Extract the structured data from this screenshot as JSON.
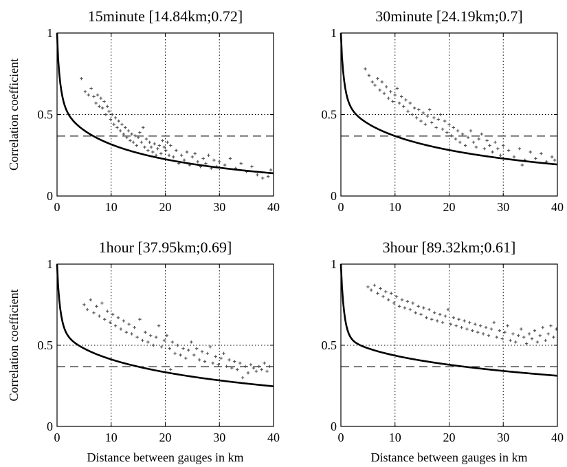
{
  "chart_data": [
    {
      "type": "scatter",
      "title": "15minute [14.84km;0.72]",
      "xlabel": "",
      "ylabel": "Correlation coefficient",
      "xlim": [
        0,
        40
      ],
      "ylim": [
        0,
        1
      ],
      "xticks": [
        "0",
        "10",
        "20",
        "30",
        "40"
      ],
      "yticks": [
        "0",
        "0.5",
        "1"
      ],
      "grid": "dotted",
      "fit": {
        "nugget": 0.72,
        "range_km": 14.84
      },
      "reference_line": 0.368,
      "points": [
        [
          4.5,
          0.72
        ],
        [
          5.2,
          0.64
        ],
        [
          5.8,
          0.62
        ],
        [
          6.3,
          0.66
        ],
        [
          6.8,
          0.61
        ],
        [
          7.2,
          0.57
        ],
        [
          7.5,
          0.62
        ],
        [
          7.8,
          0.55
        ],
        [
          8.1,
          0.6
        ],
        [
          8.4,
          0.54
        ],
        [
          8.7,
          0.58
        ],
        [
          9.0,
          0.5
        ],
        [
          9.3,
          0.55
        ],
        [
          9.6,
          0.52
        ],
        [
          9.9,
          0.47
        ],
        [
          10.2,
          0.5
        ],
        [
          10.5,
          0.44
        ],
        [
          10.8,
          0.48
        ],
        [
          11.1,
          0.42
        ],
        [
          11.4,
          0.46
        ],
        [
          11.7,
          0.4
        ],
        [
          12.0,
          0.44
        ],
        [
          12.3,
          0.38
        ],
        [
          12.6,
          0.42
        ],
        [
          12.9,
          0.36
        ],
        [
          13.2,
          0.4
        ],
        [
          13.5,
          0.34
        ],
        [
          13.8,
          0.38
        ],
        [
          14.1,
          0.33
        ],
        [
          14.4,
          0.37
        ],
        [
          14.7,
          0.31
        ],
        [
          15.0,
          0.36
        ],
        [
          15.3,
          0.39
        ],
        [
          15.6,
          0.33
        ],
        [
          15.9,
          0.42
        ],
        [
          16.2,
          0.3
        ],
        [
          16.5,
          0.35
        ],
        [
          16.8,
          0.28
        ],
        [
          17.1,
          0.33
        ],
        [
          17.4,
          0.3
        ],
        [
          17.7,
          0.27
        ],
        [
          18.0,
          0.32
        ],
        [
          18.3,
          0.25
        ],
        [
          18.6,
          0.29
        ],
        [
          18.9,
          0.31
        ],
        [
          19.2,
          0.26
        ],
        [
          19.5,
          0.34
        ],
        [
          19.8,
          0.3
        ],
        [
          20.1,
          0.28
        ],
        [
          20.4,
          0.33
        ],
        [
          20.7,
          0.25
        ],
        [
          21.0,
          0.31
        ],
        [
          21.5,
          0.24
        ],
        [
          22.0,
          0.28
        ],
        [
          22.5,
          0.2
        ],
        [
          23.0,
          0.25
        ],
        [
          23.5,
          0.22
        ],
        [
          24.0,
          0.27
        ],
        [
          24.5,
          0.19
        ],
        [
          25.0,
          0.24
        ],
        [
          25.5,
          0.26
        ],
        [
          26.0,
          0.21
        ],
        [
          26.5,
          0.18
        ],
        [
          27.0,
          0.23
        ],
        [
          27.5,
          0.2
        ],
        [
          28.0,
          0.25
        ],
        [
          28.5,
          0.17
        ],
        [
          29.0,
          0.22
        ],
        [
          29.5,
          0.18
        ],
        [
          30.0,
          0.21
        ],
        [
          31.0,
          0.19
        ],
        [
          32.0,
          0.23
        ],
        [
          33.0,
          0.17
        ],
        [
          34.0,
          0.2
        ],
        [
          35.0,
          0.15
        ],
        [
          36.0,
          0.18
        ],
        [
          37.0,
          0.13
        ],
        [
          38.0,
          0.11
        ],
        [
          39.0,
          0.12
        ],
        [
          39.5,
          0.16
        ]
      ]
    },
    {
      "type": "scatter",
      "title": "30minute  [24.19km;0.7]",
      "xlabel": "",
      "ylabel": "",
      "xlim": [
        0,
        40
      ],
      "ylim": [
        0,
        1
      ],
      "xticks": [
        "0",
        "10",
        "20",
        "30",
        "40"
      ],
      "yticks": [
        "0",
        "0.5",
        "1"
      ],
      "grid": "dotted",
      "fit": {
        "nugget": 0.7,
        "range_km": 24.19
      },
      "reference_line": 0.368,
      "points": [
        [
          4.5,
          0.78
        ],
        [
          5.2,
          0.74
        ],
        [
          5.8,
          0.7
        ],
        [
          6.3,
          0.68
        ],
        [
          6.8,
          0.72
        ],
        [
          7.2,
          0.65
        ],
        [
          7.6,
          0.7
        ],
        [
          8.0,
          0.63
        ],
        [
          8.4,
          0.67
        ],
        [
          8.8,
          0.6
        ],
        [
          9.2,
          0.64
        ],
        [
          9.6,
          0.58
        ],
        [
          10.0,
          0.62
        ],
        [
          10.4,
          0.66
        ],
        [
          10.8,
          0.57
        ],
        [
          11.2,
          0.61
        ],
        [
          11.6,
          0.55
        ],
        [
          12.0,
          0.59
        ],
        [
          12.4,
          0.52
        ],
        [
          12.8,
          0.57
        ],
        [
          13.2,
          0.5
        ],
        [
          13.6,
          0.54
        ],
        [
          14.0,
          0.48
        ],
        [
          14.4,
          0.53
        ],
        [
          14.8,
          0.46
        ],
        [
          15.2,
          0.51
        ],
        [
          15.6,
          0.44
        ],
        [
          16.0,
          0.49
        ],
        [
          16.4,
          0.53
        ],
        [
          16.8,
          0.45
        ],
        [
          17.2,
          0.48
        ],
        [
          17.6,
          0.42
        ],
        [
          18.0,
          0.47
        ],
        [
          18.4,
          0.5
        ],
        [
          18.8,
          0.41
        ],
        [
          19.2,
          0.46
        ],
        [
          19.6,
          0.39
        ],
        [
          20.0,
          0.44
        ],
        [
          20.4,
          0.37
        ],
        [
          20.8,
          0.42
        ],
        [
          21.2,
          0.35
        ],
        [
          21.6,
          0.4
        ],
        [
          22.0,
          0.33
        ],
        [
          22.5,
          0.38
        ],
        [
          23.0,
          0.31
        ],
        [
          23.5,
          0.36
        ],
        [
          24.0,
          0.4
        ],
        [
          24.5,
          0.33
        ],
        [
          25.0,
          0.3
        ],
        [
          25.5,
          0.35
        ],
        [
          26.0,
          0.38
        ],
        [
          26.5,
          0.29
        ],
        [
          27.0,
          0.34
        ],
        [
          27.5,
          0.31
        ],
        [
          28.0,
          0.27
        ],
        [
          28.5,
          0.33
        ],
        [
          29.0,
          0.29
        ],
        [
          29.5,
          0.25
        ],
        [
          30.0,
          0.31
        ],
        [
          31.0,
          0.28
        ],
        [
          32.0,
          0.24
        ],
        [
          33.0,
          0.29
        ],
        [
          34.0,
          0.22
        ],
        [
          35.0,
          0.27
        ],
        [
          36.0,
          0.23
        ],
        [
          37.0,
          0.26
        ],
        [
          38.0,
          0.21
        ],
        [
          39.0,
          0.24
        ],
        [
          39.5,
          0.22
        ],
        [
          33.5,
          0.19
        ]
      ]
    },
    {
      "type": "scatter",
      "title": "1hour  [37.95km;0.69]",
      "xlabel": "Distance between gauges in km",
      "ylabel": "Correlation coefficient",
      "xlim": [
        0,
        40
      ],
      "ylim": [
        0,
        1
      ],
      "xticks": [
        "0",
        "10",
        "20",
        "30",
        "40"
      ],
      "yticks": [
        "0",
        "0.5",
        "1"
      ],
      "grid": "dotted",
      "fit": {
        "nugget": 0.69,
        "range_km": 37.95
      },
      "reference_line": 0.368,
      "points": [
        [
          5.0,
          0.75
        ],
        [
          5.6,
          0.72
        ],
        [
          6.2,
          0.78
        ],
        [
          6.8,
          0.7
        ],
        [
          7.3,
          0.74
        ],
        [
          7.8,
          0.68
        ],
        [
          8.3,
          0.76
        ],
        [
          8.8,
          0.66
        ],
        [
          9.3,
          0.71
        ],
        [
          9.8,
          0.64
        ],
        [
          10.3,
          0.69
        ],
        [
          10.8,
          0.62
        ],
        [
          11.3,
          0.67
        ],
        [
          11.8,
          0.6
        ],
        [
          12.3,
          0.65
        ],
        [
          12.8,
          0.58
        ],
        [
          13.3,
          0.63
        ],
        [
          13.8,
          0.57
        ],
        [
          14.3,
          0.61
        ],
        [
          14.8,
          0.55
        ],
        [
          15.3,
          0.66
        ],
        [
          15.8,
          0.53
        ],
        [
          16.3,
          0.58
        ],
        [
          16.8,
          0.52
        ],
        [
          17.3,
          0.56
        ],
        [
          17.8,
          0.5
        ],
        [
          18.3,
          0.55
        ],
        [
          18.8,
          0.62
        ],
        [
          19.3,
          0.49
        ],
        [
          19.8,
          0.53
        ],
        [
          20.3,
          0.56
        ],
        [
          20.8,
          0.48
        ],
        [
          21.3,
          0.52
        ],
        [
          21.8,
          0.45
        ],
        [
          22.3,
          0.5
        ],
        [
          22.8,
          0.44
        ],
        [
          23.3,
          0.48
        ],
        [
          23.8,
          0.42
        ],
        [
          24.3,
          0.47
        ],
        [
          24.8,
          0.52
        ],
        [
          25.3,
          0.44
        ],
        [
          25.8,
          0.48
        ],
        [
          26.3,
          0.41
        ],
        [
          26.8,
          0.46
        ],
        [
          27.3,
          0.4
        ],
        [
          27.8,
          0.45
        ],
        [
          28.3,
          0.49
        ],
        [
          28.8,
          0.39
        ],
        [
          29.3,
          0.43
        ],
        [
          29.8,
          0.38
        ],
        [
          30.3,
          0.42
        ],
        [
          30.8,
          0.45
        ],
        [
          31.3,
          0.37
        ],
        [
          31.8,
          0.41
        ],
        [
          32.3,
          0.36
        ],
        [
          32.8,
          0.4
        ],
        [
          33.3,
          0.35
        ],
        [
          33.8,
          0.39
        ],
        [
          34.3,
          0.3
        ],
        [
          34.8,
          0.37
        ],
        [
          35.3,
          0.33
        ],
        [
          35.8,
          0.38
        ],
        [
          36.3,
          0.36
        ],
        [
          36.8,
          0.34
        ],
        [
          37.3,
          0.37
        ],
        [
          37.8,
          0.35
        ],
        [
          38.3,
          0.39
        ],
        [
          38.8,
          0.34
        ],
        [
          39.3,
          0.37
        ],
        [
          21.0,
          0.35
        ]
      ]
    },
    {
      "type": "scatter",
      "title": "3hour  [89.32km;0.61]",
      "xlabel": "Distance between gauges in km",
      "ylabel": "",
      "xlim": [
        0,
        40
      ],
      "ylim": [
        0,
        1
      ],
      "xticks": [
        "0",
        "10",
        "20",
        "30",
        "40"
      ],
      "yticks": [
        "0",
        "0.5",
        "1"
      ],
      "grid": "dotted",
      "fit": {
        "nugget": 0.61,
        "range_km": 89.32
      },
      "reference_line": 0.368,
      "points": [
        [
          5.0,
          0.86
        ],
        [
          5.6,
          0.84
        ],
        [
          6.2,
          0.87
        ],
        [
          6.8,
          0.82
        ],
        [
          7.3,
          0.85
        ],
        [
          7.8,
          0.8
        ],
        [
          8.3,
          0.83
        ],
        [
          8.8,
          0.78
        ],
        [
          9.3,
          0.82
        ],
        [
          9.8,
          0.76
        ],
        [
          10.3,
          0.8
        ],
        [
          10.8,
          0.74
        ],
        [
          11.3,
          0.78
        ],
        [
          11.8,
          0.73
        ],
        [
          12.3,
          0.77
        ],
        [
          12.8,
          0.72
        ],
        [
          13.3,
          0.76
        ],
        [
          13.8,
          0.7
        ],
        [
          14.3,
          0.74
        ],
        [
          14.8,
          0.69
        ],
        [
          15.3,
          0.73
        ],
        [
          15.8,
          0.67
        ],
        [
          16.3,
          0.72
        ],
        [
          16.8,
          0.66
        ],
        [
          17.3,
          0.7
        ],
        [
          17.8,
          0.65
        ],
        [
          18.3,
          0.69
        ],
        [
          18.8,
          0.64
        ],
        [
          19.3,
          0.68
        ],
        [
          19.8,
          0.72
        ],
        [
          20.3,
          0.63
        ],
        [
          20.8,
          0.67
        ],
        [
          21.3,
          0.62
        ],
        [
          21.8,
          0.66
        ],
        [
          22.3,
          0.61
        ],
        [
          22.8,
          0.65
        ],
        [
          23.3,
          0.6
        ],
        [
          23.8,
          0.64
        ],
        [
          24.3,
          0.59
        ],
        [
          24.8,
          0.63
        ],
        [
          25.3,
          0.58
        ],
        [
          25.8,
          0.62
        ],
        [
          26.3,
          0.57
        ],
        [
          26.8,
          0.61
        ],
        [
          27.3,
          0.56
        ],
        [
          27.8,
          0.6
        ],
        [
          28.3,
          0.64
        ],
        [
          28.8,
          0.55
        ],
        [
          29.3,
          0.59
        ],
        [
          29.8,
          0.54
        ],
        [
          30.3,
          0.58
        ],
        [
          30.8,
          0.62
        ],
        [
          31.3,
          0.53
        ],
        [
          31.8,
          0.57
        ],
        [
          32.3,
          0.52
        ],
        [
          32.8,
          0.56
        ],
        [
          33.3,
          0.6
        ],
        [
          33.8,
          0.55
        ],
        [
          34.3,
          0.51
        ],
        [
          34.8,
          0.57
        ],
        [
          35.3,
          0.54
        ],
        [
          35.8,
          0.59
        ],
        [
          36.3,
          0.52
        ],
        [
          36.8,
          0.56
        ],
        [
          37.3,
          0.61
        ],
        [
          37.8,
          0.53
        ],
        [
          38.3,
          0.57
        ],
        [
          38.8,
          0.62
        ],
        [
          39.3,
          0.55
        ],
        [
          39.8,
          0.6
        ]
      ]
    }
  ]
}
